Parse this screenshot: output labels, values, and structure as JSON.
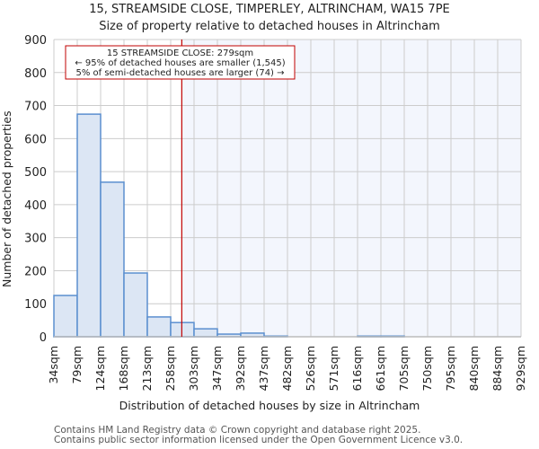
{
  "header": {
    "title": "15, STREAMSIDE CLOSE, TIMPERLEY, ALTRINCHAM, WA15 7PE",
    "subtitle": "Size of property relative to detached houses in Altrincham"
  },
  "axes": {
    "xlabel": "Distribution of detached houses by size in Altrincham",
    "ylabel": "Number of detached properties"
  },
  "annotation": {
    "line1": "15 STREAMSIDE CLOSE: 279sqm",
    "line2": "← 95% of detached houses are smaller (1,545)",
    "line3": "5% of semi-detached houses are larger (74) →"
  },
  "footer": {
    "line1": "Contains HM Land Registry data © Crown copyright and database right 2025.",
    "line2": "Contains public sector information licensed under the Open Government Licence v3.0."
  },
  "colors": {
    "bar_fill": "#dce6f4",
    "bar_stroke": "#5b8fcf",
    "marker_line": "#c00000",
    "highlight_bg": "#f3f6fd",
    "grid": "#cccccc"
  },
  "chart_data": {
    "type": "bar",
    "title": "15, STREAMSIDE CLOSE, TIMPERLEY, ALTRINCHAM, WA15 7PE",
    "subtitle": "Size of property relative to detached houses in Altrincham",
    "xlabel": "Distribution of detached houses by size in Altrincham",
    "ylabel": "Number of detached properties",
    "categories": [
      "34sqm",
      "79sqm",
      "124sqm",
      "168sqm",
      "213sqm",
      "258sqm",
      "303sqm",
      "347sqm",
      "392sqm",
      "437sqm",
      "482sqm",
      "526sqm",
      "571sqm",
      "616sqm",
      "661sqm",
      "705sqm",
      "750sqm",
      "795sqm",
      "840sqm",
      "884sqm",
      "929sqm"
    ],
    "bin_edges": [
      34,
      79,
      124,
      168,
      213,
      258,
      303,
      347,
      392,
      437,
      482,
      526,
      571,
      616,
      661,
      705,
      750,
      795,
      840,
      884,
      929
    ],
    "values": [
      125,
      674,
      468,
      193,
      60,
      43,
      24,
      8,
      11,
      2,
      0,
      0,
      0,
      2,
      2,
      0,
      0,
      0,
      0,
      0
    ],
    "ylim": [
      0,
      900
    ],
    "yticks": [
      0,
      100,
      200,
      300,
      400,
      500,
      600,
      700,
      800,
      900
    ],
    "grid": true,
    "marker": {
      "value": 279,
      "label": "15 STREAMSIDE CLOSE: 279sqm"
    },
    "legend": null
  }
}
